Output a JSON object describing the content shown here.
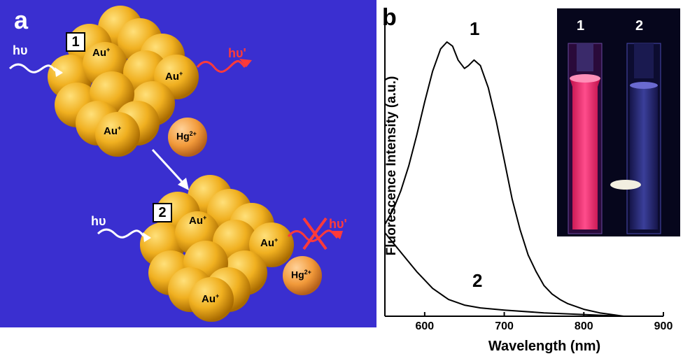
{
  "panel_a": {
    "letter": "a",
    "cluster1_label": "1",
    "cluster2_label": "2",
    "hv_in": "hυ",
    "hv_out": "hυ'",
    "au": "Au",
    "au_charge": "+",
    "hg": "Hg",
    "hg_charge": "2+",
    "colors": {
      "background": "#3a2fd0",
      "gold": "#f0b020",
      "emission": "#ff3a3a"
    }
  },
  "panel_b": {
    "letter": "b",
    "inset_labels": [
      "1",
      "2"
    ],
    "chart_data": {
      "type": "line",
      "xlabel": "Wavelength (nm)",
      "ylabel": "Fluorescence Intensity (a.u.)",
      "xlim": [
        550,
        900
      ],
      "x_ticks": [
        600,
        700,
        800,
        900
      ],
      "ylim": [
        0,
        1
      ],
      "series": [
        {
          "name": "1",
          "x": [
            550,
            560,
            570,
            580,
            590,
            600,
            610,
            620,
            628,
            635,
            642,
            650,
            655,
            662,
            670,
            680,
            690,
            700,
            710,
            720,
            730,
            740,
            750,
            760,
            770,
            780,
            800,
            820,
            840,
            850
          ],
          "y": [
            0.33,
            0.38,
            0.45,
            0.54,
            0.65,
            0.77,
            0.88,
            0.96,
            0.985,
            0.97,
            0.92,
            0.89,
            0.9,
            0.92,
            0.9,
            0.82,
            0.7,
            0.56,
            0.42,
            0.31,
            0.22,
            0.16,
            0.11,
            0.08,
            0.06,
            0.045,
            0.025,
            0.012,
            0.004,
            0.0
          ]
        },
        {
          "name": "2",
          "x": [
            550,
            570,
            590,
            610,
            630,
            650,
            670,
            700,
            750,
            800,
            850
          ],
          "y": [
            0.3,
            0.23,
            0.16,
            0.1,
            0.06,
            0.04,
            0.03,
            0.022,
            0.012,
            0.006,
            0.0
          ]
        }
      ]
    }
  }
}
